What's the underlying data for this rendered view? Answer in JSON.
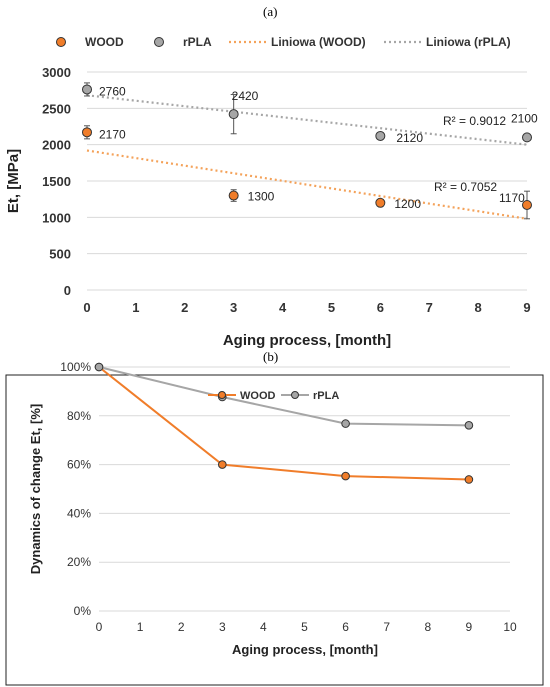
{
  "panels": {
    "a": "(a)",
    "b": "(b)"
  },
  "colors": {
    "wood": "#F07D2A",
    "rpla": "#A6A6A6",
    "grid": "#D9D9D9",
    "wood_line": "#F4A25A",
    "rpla_line": "#A6A6A6"
  },
  "chart_data": [
    {
      "type": "scatter",
      "xlabel": "Aging process, [month]",
      "ylabel": "Et, [MPa]",
      "xlim": [
        0,
        9
      ],
      "ylim": [
        0,
        3000
      ],
      "xticks": [
        0,
        1,
        2,
        3,
        4,
        5,
        6,
        7,
        8,
        9
      ],
      "yticks": [
        0,
        500,
        1000,
        1500,
        2000,
        2500,
        3000
      ],
      "grid": "horizontal",
      "legend": "top",
      "series": [
        {
          "name": "WOOD",
          "x": [
            0,
            3,
            6,
            9
          ],
          "y": [
            2170,
            1300,
            1200,
            1170
          ],
          "error": [
            90,
            80,
            40,
            190
          ],
          "labels": [
            "2170",
            "1300",
            "1200",
            "1170"
          ]
        },
        {
          "name": "rPLA",
          "x": [
            0,
            3,
            6,
            9
          ],
          "y": [
            2760,
            2420,
            2120,
            2100
          ],
          "error": [
            90,
            270,
            30,
            30
          ],
          "labels": [
            "2760",
            "2420",
            "2120",
            "2100"
          ]
        }
      ],
      "trendlines": [
        {
          "name": "Liniowa (WOOD)",
          "x": [
            0,
            9
          ],
          "y": [
            1920,
            980
          ],
          "r2": "R² = 0.7052"
        },
        {
          "name": "Liniowa (rPLA)",
          "x": [
            0,
            9
          ],
          "y": [
            2680,
            2000
          ],
          "r2": "R² = 0.9012"
        }
      ]
    },
    {
      "type": "line",
      "xlabel": "Aging process, [month]",
      "ylabel": "Dynamics of change Et, [%]",
      "xlim": [
        0,
        10
      ],
      "ylim": [
        0,
        100
      ],
      "xticks": [
        0,
        1,
        2,
        3,
        4,
        5,
        6,
        7,
        8,
        9,
        10
      ],
      "yticks": [
        0,
        20,
        40,
        60,
        80,
        100
      ],
      "ytick_labels": [
        "0%",
        "20%",
        "40%",
        "60%",
        "80%",
        "100%"
      ],
      "grid": "horizontal",
      "legend": "top",
      "series": [
        {
          "name": "WOOD",
          "x": [
            0,
            3,
            6,
            9
          ],
          "y": [
            100,
            60,
            55.3,
            53.9
          ]
        },
        {
          "name": "rPLA",
          "x": [
            0,
            3,
            6,
            9
          ],
          "y": [
            100,
            87.7,
            76.8,
            76.1
          ]
        }
      ]
    }
  ]
}
